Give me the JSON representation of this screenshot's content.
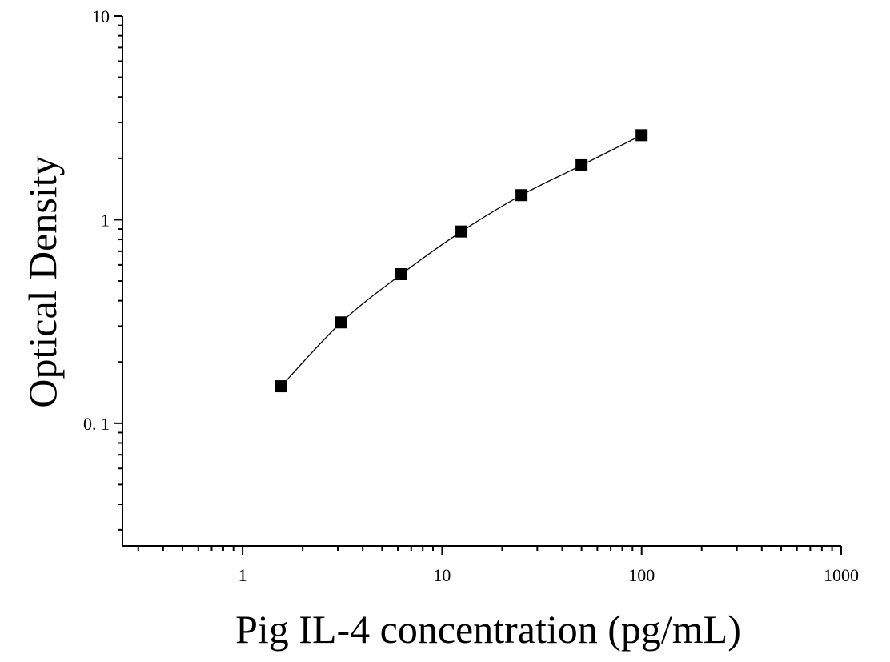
{
  "chart_data": {
    "type": "scatter",
    "title": "",
    "xlabel": "Pig IL-4 concentration (pg/mL)",
    "ylabel": "Optical Density",
    "x_scale": "log",
    "y_scale": "log",
    "xlim": [
      0.25,
      1000
    ],
    "ylim": [
      0.025,
      10
    ],
    "x_ticks": [
      {
        "value": 1,
        "label": "1"
      },
      {
        "value": 10,
        "label": "10"
      },
      {
        "value": 100,
        "label": "100"
      },
      {
        "value": 1000,
        "label": "1000"
      }
    ],
    "y_ticks": [
      {
        "value": 0.1,
        "label": "0. 1"
      },
      {
        "value": 1,
        "label": "1"
      },
      {
        "value": 10,
        "label": "10"
      }
    ],
    "grid": false,
    "legend": "none",
    "series": [
      {
        "marker": "square",
        "color": "#000000",
        "x": [
          1.56,
          3.12,
          6.25,
          12.5,
          25,
          50,
          100
        ],
        "y": [
          0.152,
          0.313,
          0.54,
          0.875,
          1.32,
          1.85,
          2.6
        ]
      }
    ],
    "fit_curve": {
      "style": "smooth line through points",
      "color": "#000000"
    }
  }
}
